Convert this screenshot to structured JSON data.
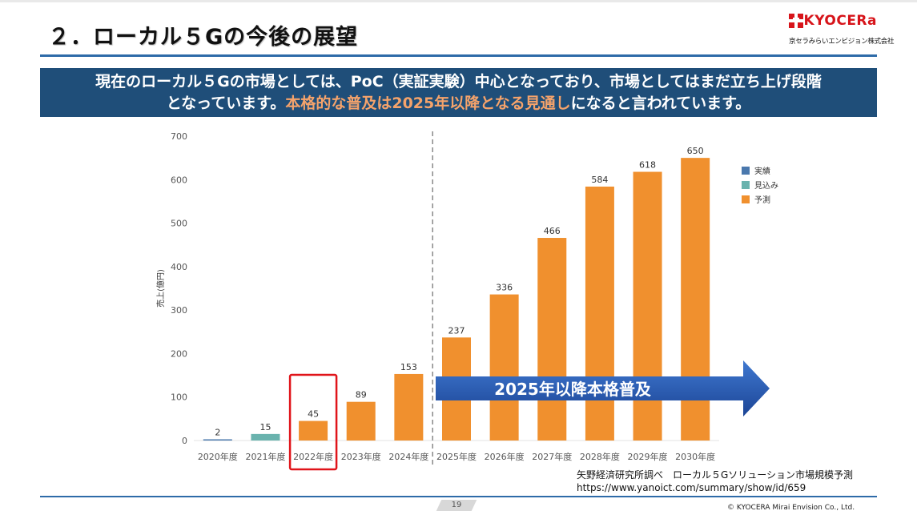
{
  "slide": {
    "title": "２．ローカル５Gの今後の展望",
    "banner_line1": "現在のローカル５Gの市場としては、PoC（実証実験）中心となっており、市場としてはまだ立ち上げ段階",
    "banner_line2_pre": "となっています。",
    "banner_line2_highlight": "本格的な普及は2025年以降となる見通し",
    "banner_line2_post": "になると言われています。",
    "page_number": "19",
    "copyright": "© KYOCERA Mirai Envision Co., Ltd."
  },
  "logo": {
    "wordmark": "KYOCERa",
    "subtitle": "京セラみらいエンビジョン株式会社"
  },
  "source": {
    "line1": "矢野経済研究所調べ　ローカル５Gソリューション市場規模予測",
    "line2": "https://www.yanoict.com/summary/show/id/659"
  },
  "colors": {
    "actual": "#4a78ad",
    "estimate": "#6ab3ae",
    "forecast": "#f0902e",
    "title_bar": "#1f4e79",
    "highlight_text": "#f5a36b",
    "arrow": "#2a5db0",
    "highlight_box": "#e0141a"
  },
  "chart_data": {
    "type": "bar",
    "title": "",
    "xlabel": "",
    "ylabel": "売上(億円)",
    "ylim": [
      0,
      700
    ],
    "yticks": [
      0,
      100,
      200,
      300,
      400,
      500,
      600,
      700
    ],
    "categories": [
      "2020年度",
      "2021年度",
      "2022年度",
      "2023年度",
      "2024年度",
      "2025年度",
      "2026年度",
      "2027年度",
      "2028年度",
      "2029年度",
      "2030年度"
    ],
    "values": [
      2,
      15,
      45,
      89,
      153,
      237,
      336,
      466,
      584,
      618,
      650
    ],
    "bar_types": [
      "実績",
      "見込み",
      "予測",
      "予測",
      "予測",
      "予測",
      "予測",
      "予測",
      "予測",
      "予測",
      "予測"
    ],
    "legend": [
      {
        "name": "実績",
        "color": "#4a78ad"
      },
      {
        "name": "見込み",
        "color": "#6ab3ae"
      },
      {
        "name": "予測",
        "color": "#f0902e"
      }
    ],
    "legend_position": "top-right",
    "highlighted_category": "2022年度",
    "divider_after_category": "2024年度",
    "arrow_label": "2025年以降本格普及",
    "grid": false
  }
}
